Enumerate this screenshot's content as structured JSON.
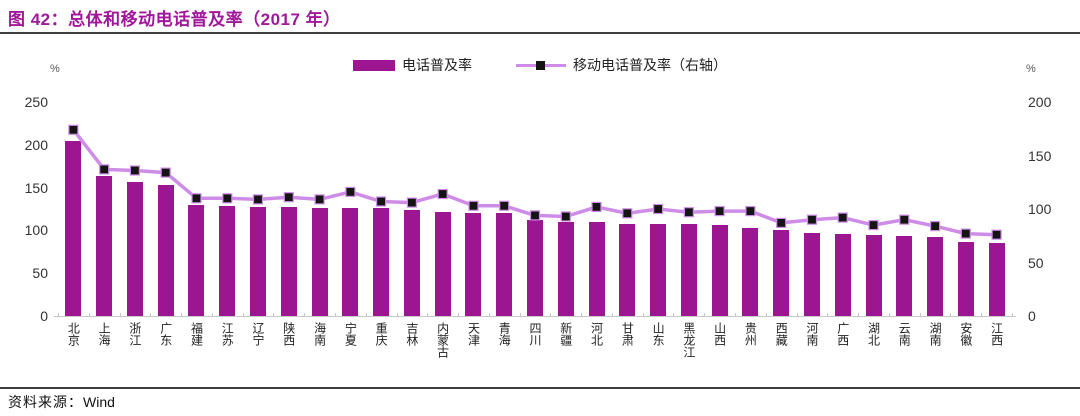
{
  "header": {
    "title": "图 42：总体和移动电话普及率（2017 年）"
  },
  "legend": {
    "bar_label": "电话普及率",
    "line_label": "移动电话普及率（右轴）"
  },
  "footer": {
    "source_label": "资料来源：",
    "source_value": "Wind"
  },
  "colors": {
    "bar": "#9B1690",
    "line": "#CE8CE8",
    "marker": "#141414",
    "title_accent": "#A0189A"
  },
  "chart_data": {
    "type": "bar",
    "title": "图 42：总体和移动电话普及率（2017 年）",
    "categories": [
      "北京",
      "上海",
      "浙江",
      "广东",
      "福建",
      "江苏",
      "辽宁",
      "陕西",
      "海南",
      "宁夏",
      "重庆",
      "吉林",
      "内蒙古",
      "天津",
      "青海",
      "四川",
      "新疆",
      "河北",
      "甘肃",
      "山东",
      "黑龙江",
      "山西",
      "贵州",
      "西藏",
      "河南",
      "广西",
      "湖北",
      "云南",
      "湖南",
      "安徽",
      "江西"
    ],
    "series": [
      {
        "name": "电话普及率",
        "type": "bar",
        "axis": "left",
        "values": [
          204,
          164,
          156,
          153,
          130,
          128,
          127,
          127,
          126,
          126,
          126,
          124,
          121,
          120,
          120,
          112,
          110,
          110,
          108,
          107,
          107,
          106,
          103,
          101,
          97,
          96,
          95,
          94,
          92,
          87,
          85
        ]
      },
      {
        "name": "移动电话普及率（右轴）",
        "type": "line",
        "axis": "right",
        "values": [
          174,
          137,
          136,
          134,
          110,
          110,
          109,
          111,
          109,
          116,
          107,
          106,
          114,
          103,
          103,
          94,
          93,
          102,
          96,
          100,
          97,
          98,
          98,
          87,
          90,
          92,
          85,
          90,
          84,
          77,
          76
        ]
      }
    ],
    "left_axis": {
      "unit": "%",
      "ticks": [
        0,
        50,
        100,
        150,
        200,
        250
      ],
      "min": 0,
      "max": 250
    },
    "right_axis": {
      "unit": "%",
      "ticks": [
        0,
        50,
        100,
        150,
        200
      ],
      "min": 0,
      "max": 200
    },
    "grid": false,
    "legend_position": "top-center"
  }
}
